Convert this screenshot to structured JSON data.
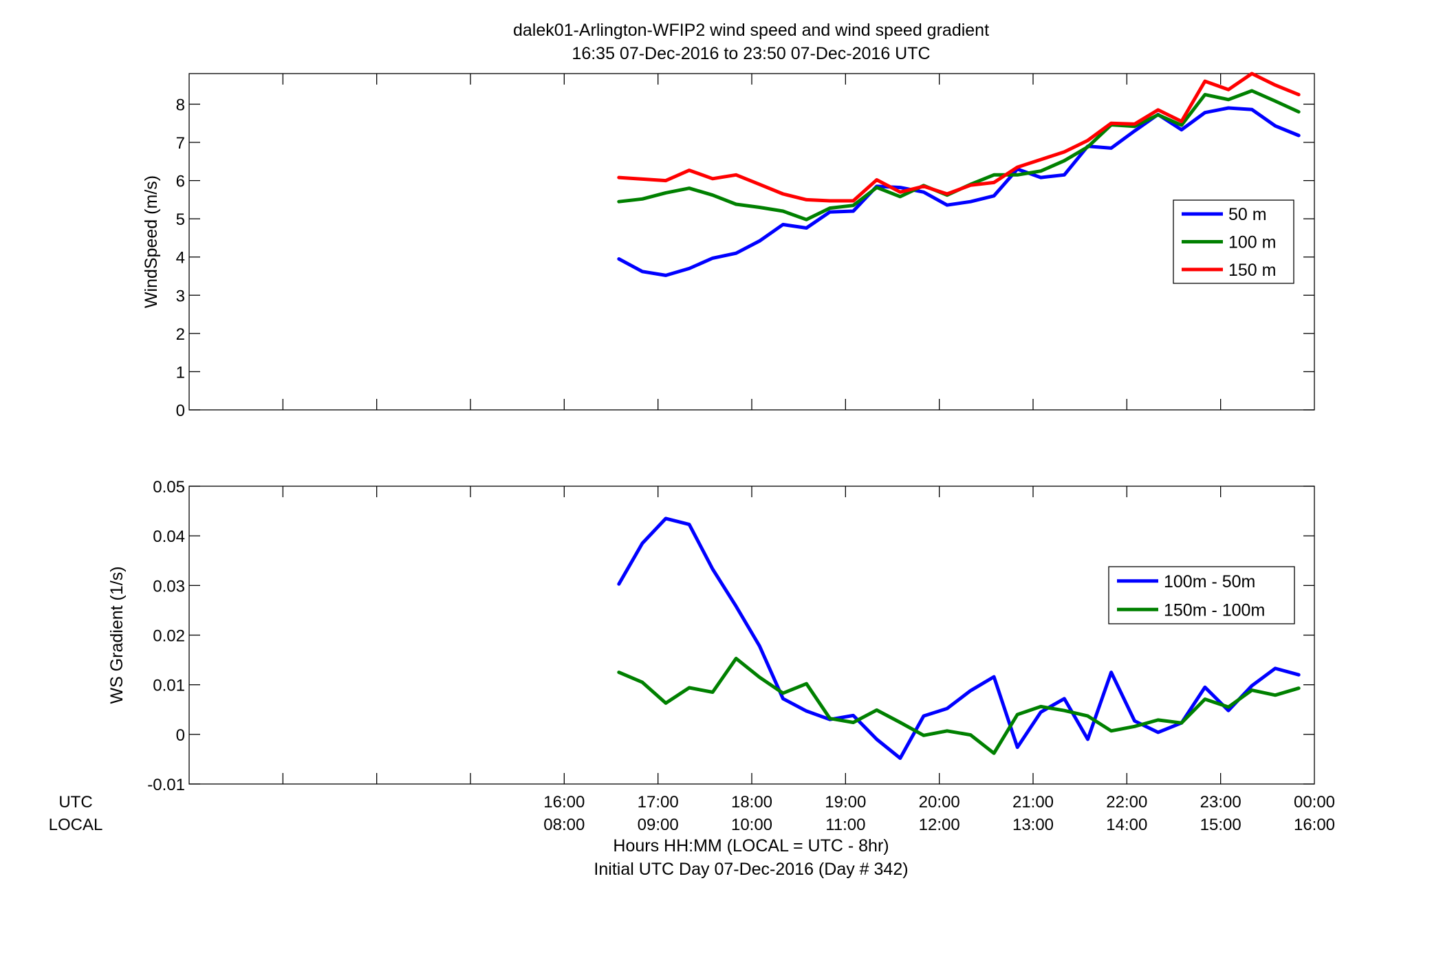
{
  "figure": {
    "title_line1": "dalek01-Arlington-WFIP2  wind speed and wind speed gradient",
    "title_line2": "16:35 07-Dec-2016 to 23:50 07-Dec-2016  UTC",
    "xlabel_line1": "Hours HH:MM  (LOCAL = UTC - 8hr)",
    "xlabel_line2": "Initial UTC Day 07-Dec-2016 (Day # 342)",
    "row_label_utc": "UTC",
    "row_label_local": "LOCAL",
    "x_ticks_utc": [
      "16:00",
      "17:00",
      "18:00",
      "19:00",
      "20:00",
      "21:00",
      "22:00",
      "23:00",
      "00:00"
    ],
    "x_ticks_local": [
      "08:00",
      "09:00",
      "10:00",
      "11:00",
      "12:00",
      "13:00",
      "14:00",
      "15:00",
      "16:00"
    ]
  },
  "chart_data": [
    {
      "type": "line",
      "ylabel": "WindSpeed (m/s)",
      "ylim": [
        0,
        8.8
      ],
      "yticks": [
        "0",
        "1",
        "2",
        "3",
        "4",
        "5",
        "6",
        "7",
        "8"
      ],
      "xlim_utc_hours": [
        12,
        24
      ],
      "legend_position": "right",
      "x": [
        16.583,
        16.833,
        17.083,
        17.333,
        17.583,
        17.833,
        18.083,
        18.333,
        18.583,
        18.833,
        19.083,
        19.333,
        19.583,
        19.833,
        20.083,
        20.333,
        20.583,
        20.833,
        21.083,
        21.333,
        21.583,
        21.833,
        22.083,
        22.333,
        22.583,
        22.833,
        23.083,
        23.333,
        23.583,
        23.833
      ],
      "series": [
        {
          "name": "50 m",
          "color": "#0000ff",
          "values": [
            3.95,
            3.62,
            3.52,
            3.7,
            3.97,
            4.1,
            4.42,
            4.85,
            4.76,
            5.18,
            5.2,
            5.85,
            5.82,
            5.7,
            5.36,
            5.45,
            5.6,
            6.3,
            6.08,
            6.15,
            6.9,
            6.85,
            7.3,
            7.73,
            7.33,
            7.78,
            7.9,
            7.86,
            7.43,
            7.18
          ]
        },
        {
          "name": "100 m",
          "color": "#008000",
          "values": [
            5.45,
            5.52,
            5.68,
            5.8,
            5.62,
            5.38,
            5.3,
            5.2,
            4.98,
            5.28,
            5.35,
            5.82,
            5.58,
            5.87,
            5.62,
            5.9,
            6.15,
            6.15,
            6.25,
            6.52,
            6.88,
            7.46,
            7.42,
            7.72,
            7.45,
            8.25,
            8.12,
            8.35,
            8.08,
            7.8
          ]
        },
        {
          "name": "150 m",
          "color": "#ff0000",
          "values": [
            6.08,
            6.04,
            6.0,
            6.27,
            6.05,
            6.15,
            5.9,
            5.65,
            5.5,
            5.47,
            5.47,
            6.02,
            5.7,
            5.85,
            5.65,
            5.88,
            5.95,
            6.35,
            6.55,
            6.75,
            7.05,
            7.5,
            7.48,
            7.85,
            7.55,
            8.6,
            8.38,
            8.8,
            8.5,
            8.25
          ]
        }
      ]
    },
    {
      "type": "line",
      "ylabel": "WS Gradient (1/s)",
      "ylim": [
        -0.01,
        0.05
      ],
      "yticks": [
        "-0.01",
        "0",
        "0.01",
        "0.02",
        "0.03",
        "0.04",
        "0.05"
      ],
      "xlim_utc_hours": [
        12,
        24
      ],
      "legend_position": "right",
      "x": [
        16.583,
        16.833,
        17.083,
        17.333,
        17.583,
        17.833,
        18.083,
        18.333,
        18.583,
        18.833,
        19.083,
        19.333,
        19.583,
        19.833,
        20.083,
        20.333,
        20.583,
        20.833,
        21.083,
        21.333,
        21.583,
        21.833,
        22.083,
        22.333,
        22.583,
        22.833,
        23.083,
        23.333,
        23.583,
        23.833
      ],
      "series": [
        {
          "name": "100m - 50m",
          "color": "#0000ff",
          "values": [
            0.0303,
            0.0385,
            0.0435,
            0.0423,
            0.0333,
            0.0258,
            0.0178,
            0.0072,
            0.0047,
            0.003,
            0.0038,
            -0.001,
            -0.0048,
            0.0037,
            0.0052,
            0.0088,
            0.0116,
            -0.0026,
            0.0045,
            0.0072,
            -0.001,
            0.0125,
            0.0027,
            0.0004,
            0.0023,
            0.0095,
            0.0048,
            0.0098,
            0.0133,
            0.012
          ]
        },
        {
          "name": "150m - 100m",
          "color": "#008000",
          "values": [
            0.0125,
            0.0105,
            0.0063,
            0.0094,
            0.0085,
            0.0153,
            0.0115,
            0.0083,
            0.0102,
            0.0032,
            0.0024,
            0.0049,
            0.0024,
            -0.0002,
            0.0007,
            -0.0001,
            -0.0038,
            0.004,
            0.0056,
            0.0048,
            0.0037,
            0.0007,
            0.0016,
            0.0029,
            0.0023,
            0.0071,
            0.0055,
            0.0089,
            0.0079,
            0.0093
          ]
        }
      ]
    }
  ]
}
